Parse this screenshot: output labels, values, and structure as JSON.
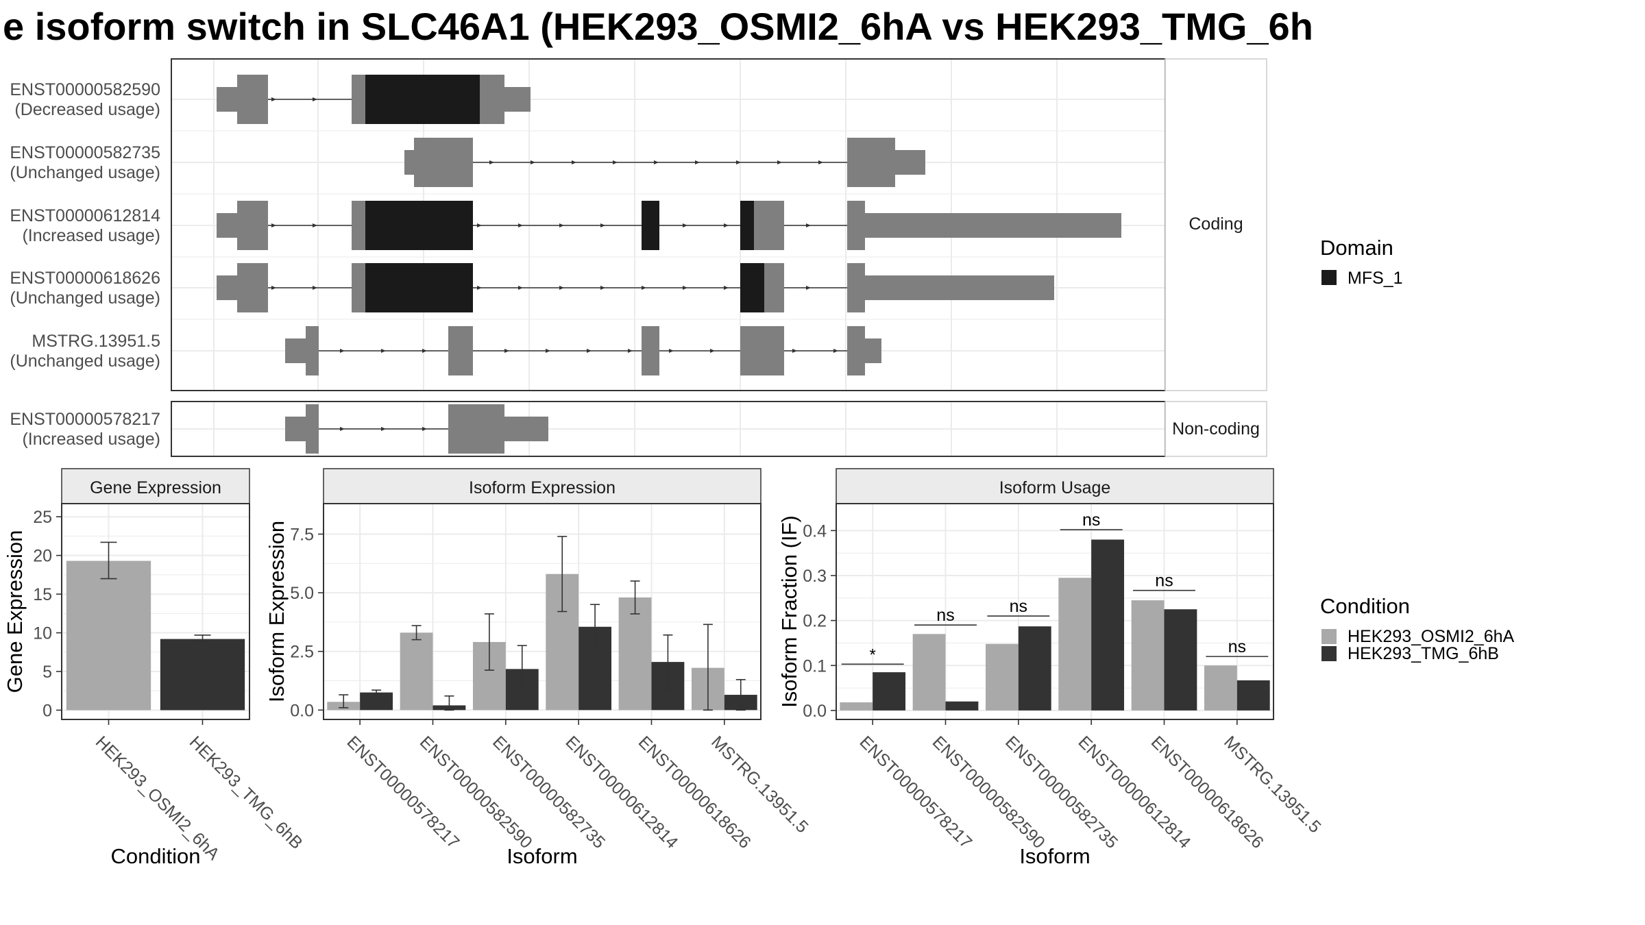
{
  "title": "e isoform switch in SLC46A1 (HEK293_OSMI2_6hA vs HEK293_TMG_6h",
  "colors": {
    "exon": "#7f7f7f",
    "domain": "#1a1a1a",
    "cond1": "#a9a9a9",
    "cond2": "#333333",
    "strip": "#ebebeb",
    "grid": "#ebebeb"
  },
  "structure": {
    "coding_label": "Coding",
    "noncoding_label": "Non-coding",
    "transcripts": [
      {
        "id": "ENST00000582590",
        "usage": "(Decreased usage)",
        "group": "coding"
      },
      {
        "id": "ENST00000582735",
        "usage": "(Unchanged usage)",
        "group": "coding"
      },
      {
        "id": "ENST00000612814",
        "usage": "(Increased usage)",
        "group": "coding"
      },
      {
        "id": "ENST00000618626",
        "usage": "(Unchanged usage)",
        "group": "coding"
      },
      {
        "id": "MSTRG.13951.5",
        "usage": "(Unchanged usage)",
        "group": "coding"
      },
      {
        "id": "ENST00000578217",
        "usage": "(Increased usage)",
        "group": "noncoding"
      }
    ]
  },
  "legend_domain": {
    "title": "Domain",
    "items": [
      "MFS_1"
    ]
  },
  "legend_condition": {
    "title": "Condition",
    "items": [
      "HEK293_OSMI2_6hA",
      "HEK293_TMG_6hB"
    ]
  },
  "chart_data": [
    {
      "type": "bar",
      "title": "Gene Expression",
      "xlabel": "Condition",
      "ylabel": "Gene Expression",
      "categories": [
        "HEK293_OSMI2_6hA",
        "HEK293_TMG_6hB"
      ],
      "values": [
        19.3,
        9.2
      ],
      "error_low": [
        17.0,
        8.7
      ],
      "error_high": [
        21.7,
        9.7
      ],
      "ylim": [
        -1.2,
        26.7
      ],
      "yticks": [
        0,
        5,
        10,
        15,
        20,
        25
      ]
    },
    {
      "type": "bar",
      "title": "Isoform Expression",
      "xlabel": "Isoform",
      "ylabel": "Isoform Expression",
      "categories": [
        "ENST00000578217",
        "ENST00000582590",
        "ENST00000582735",
        "ENST00000612814",
        "ENST00000618626",
        "MSTRG.13951.5"
      ],
      "series": [
        {
          "name": "HEK293_OSMI2_6hA",
          "values": [
            0.35,
            3.3,
            2.9,
            5.8,
            4.8,
            1.8
          ],
          "error_low": [
            0.1,
            3.0,
            1.7,
            4.2,
            4.1,
            0.0
          ],
          "error_high": [
            0.65,
            3.6,
            4.1,
            7.4,
            5.5,
            3.65
          ]
        },
        {
          "name": "HEK293_TMG_6hB",
          "values": [
            0.75,
            0.2,
            1.75,
            3.55,
            2.05,
            0.65
          ],
          "error_low": [
            0.65,
            0.0,
            0.75,
            2.6,
            0.9,
            0.0
          ],
          "error_high": [
            0.85,
            0.6,
            2.75,
            4.5,
            3.2,
            1.3
          ]
        }
      ],
      "ylim": [
        -0.4,
        8.8
      ],
      "yticks": [
        "0.0",
        "2.5",
        "5.0",
        "7.5"
      ]
    },
    {
      "type": "bar",
      "title": "Isoform Usage",
      "xlabel": "Isoform",
      "ylabel": "Isoform Fraction (IF)",
      "categories": [
        "ENST00000578217",
        "ENST00000582590",
        "ENST00000582735",
        "ENST00000612814",
        "ENST00000618626",
        "MSTRG.13951.5"
      ],
      "series": [
        {
          "name": "HEK293_OSMI2_6hA",
          "values": [
            0.018,
            0.17,
            0.148,
            0.295,
            0.245,
            0.1
          ]
        },
        {
          "name": "HEK293_TMG_6hB",
          "values": [
            0.085,
            0.02,
            0.187,
            0.38,
            0.225,
            0.067
          ]
        }
      ],
      "significance": [
        "*",
        "ns",
        "ns",
        "ns",
        "ns",
        "ns"
      ],
      "sig_y": [
        0.103,
        0.19,
        0.21,
        0.402,
        0.267,
        0.12
      ],
      "ylim": [
        -0.02,
        0.46
      ],
      "yticks": [
        "0.0",
        "0.1",
        "0.2",
        "0.3",
        "0.4"
      ]
    }
  ]
}
